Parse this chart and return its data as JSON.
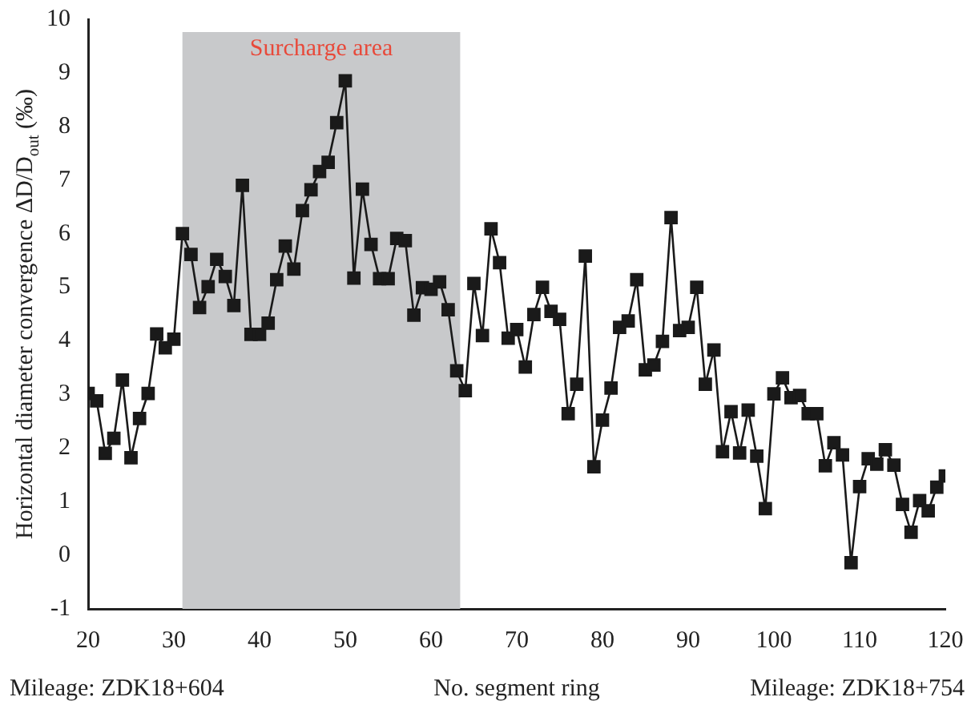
{
  "chart_data": {
    "type": "line",
    "xlabel": "No. segment ring",
    "ylabel": "Horizontal diameter convergence ΔD/D$_{out}$ (‰)",
    "x": [
      20,
      21,
      22,
      23,
      24,
      25,
      26,
      27,
      28,
      29,
      30,
      31,
      32,
      33,
      34,
      35,
      36,
      37,
      38,
      39,
      40,
      41,
      42,
      43,
      44,
      45,
      46,
      47,
      48,
      49,
      50,
      51,
      52,
      53,
      54,
      55,
      56,
      57,
      58,
      59,
      60,
      61,
      62,
      63,
      64,
      65,
      66,
      67,
      68,
      69,
      70,
      71,
      72,
      73,
      74,
      75,
      76,
      77,
      78,
      79,
      80,
      81,
      82,
      83,
      84,
      85,
      86,
      87,
      88,
      89,
      90,
      91,
      92,
      93,
      94,
      95,
      96,
      97,
      98,
      99,
      100,
      101,
      102,
      103,
      104,
      105,
      106,
      107,
      108,
      109,
      110,
      111,
      112,
      113,
      114,
      115,
      116,
      117,
      118,
      119,
      120
    ],
    "series": [
      {
        "color": "#1a1a1a",
        "values": [
          3.02,
          2.88,
          1.9,
          2.18,
          3.27,
          1.82,
          2.55,
          3.02,
          4.13,
          3.87,
          4.03,
          6.0,
          5.61,
          4.62,
          5.01,
          5.52,
          5.2,
          4.66,
          6.9,
          4.12,
          4.12,
          4.33,
          5.14,
          5.77,
          5.34,
          6.43,
          6.82,
          7.16,
          7.33,
          8.07,
          8.85,
          5.17,
          6.83,
          5.8,
          5.16,
          5.16,
          5.91,
          5.87,
          4.48,
          4.99,
          4.96,
          5.1,
          4.58,
          3.44,
          3.07,
          5.07,
          4.1,
          6.09,
          5.46,
          4.05,
          4.21,
          3.51,
          4.49,
          5.0,
          4.55,
          4.4,
          2.64,
          3.19,
          5.58,
          1.65,
          2.52,
          3.12,
          4.25,
          4.37,
          5.14,
          3.46,
          3.55,
          3.99,
          6.3,
          4.19,
          4.25,
          5.0,
          3.19,
          3.83,
          1.93,
          2.68,
          1.91,
          2.71,
          1.85,
          0.87,
          3.01,
          3.31,
          2.94,
          2.98,
          2.64,
          2.64,
          1.67,
          2.1,
          1.87,
          -0.14,
          1.28,
          1.8,
          1.7,
          1.97,
          1.68,
          0.95,
          0.43,
          1.02,
          0.83,
          1.27,
          1.48
        ]
      }
    ],
    "xlim": [
      20,
      120
    ],
    "xticks": [
      20,
      30,
      40,
      50,
      60,
      70,
      80,
      90,
      100,
      110,
      120
    ],
    "ylim": [
      -1,
      10
    ],
    "yticks": [
      -1,
      0,
      1,
      2,
      3,
      4,
      5,
      6,
      7,
      8,
      9,
      10
    ],
    "bands": [
      {
        "axis": "x",
        "from": 31,
        "to": 63.4,
        "label": "Surcharge area",
        "color": "#c8c9cb"
      }
    ],
    "annotations": [
      "Mileage: ZDK18+604",
      "Mileage: ZDK18+754"
    ],
    "grid": false,
    "legend": false,
    "marker": "square",
    "line_style": "solid"
  }
}
